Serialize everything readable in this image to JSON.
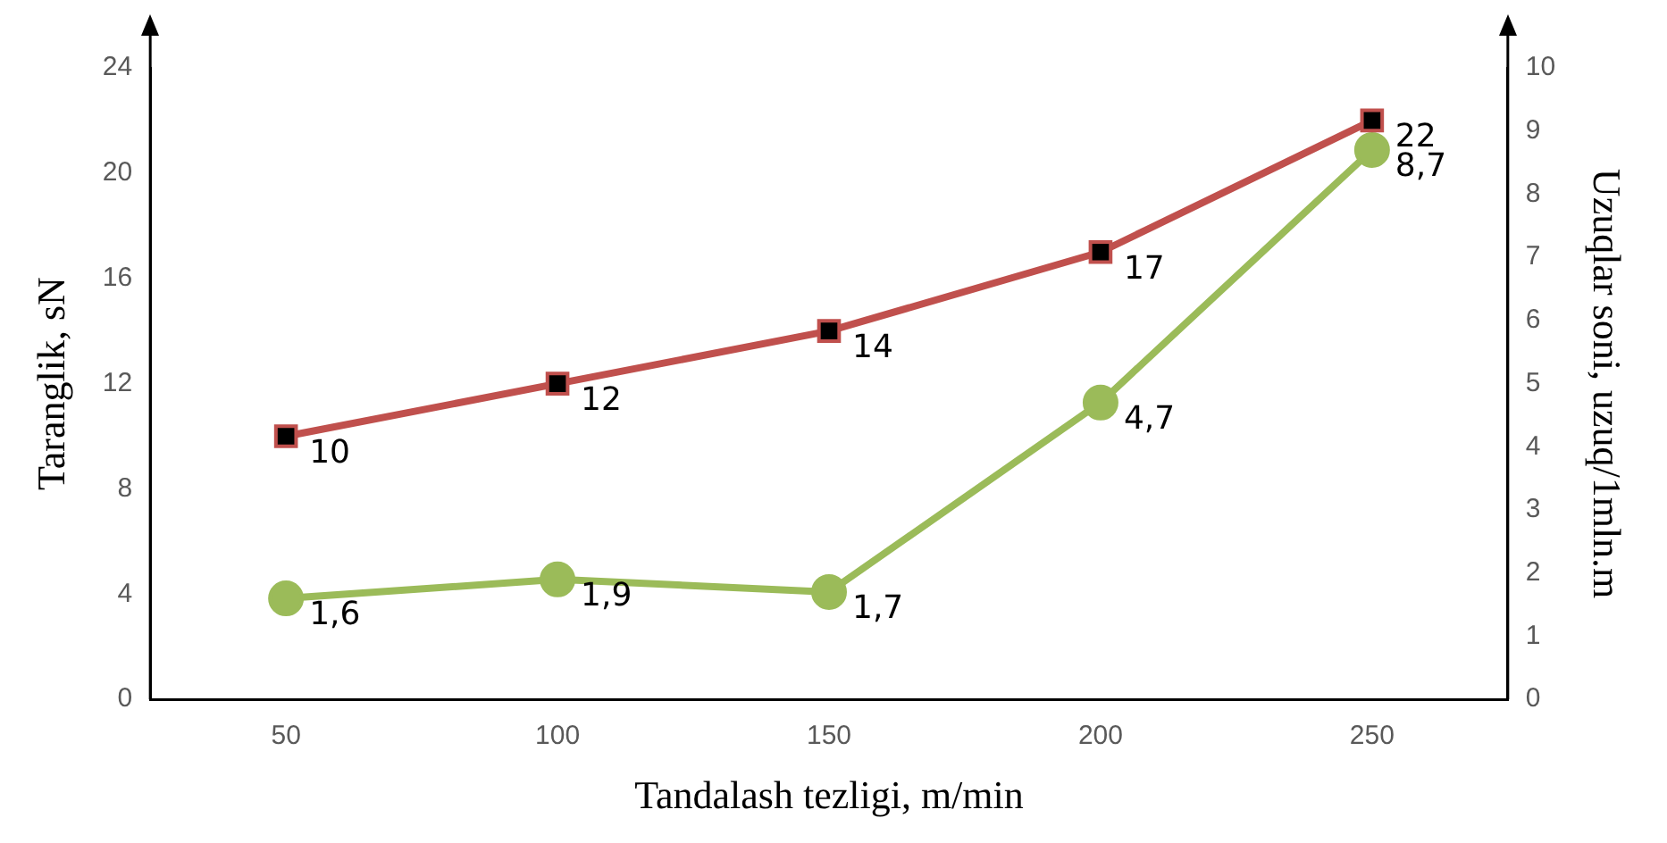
{
  "chart_data": {
    "type": "line",
    "xlabel": "Tandalash tezligi, m/min",
    "ylabel": "Taranglik, sN",
    "y2label": "Uzuqlar soni, uzuq/1mln.m",
    "categories": [
      "50",
      "100",
      "150",
      "200",
      "250"
    ],
    "series": [
      {
        "color": "#c0504d",
        "marker": "square",
        "values": [
          10,
          12,
          14,
          17,
          22
        ],
        "value_labels": [
          "10",
          "12",
          "14",
          "17",
          "22"
        ]
      },
      {
        "color": "#9bbb59",
        "marker": "circle",
        "axis": "y2",
        "values": [
          1.6,
          1.9,
          1.7,
          4.7,
          8.7
        ],
        "value_labels": [
          "1,6",
          "1,9",
          "1,7",
          "4,7",
          "8,7"
        ]
      }
    ],
    "ylim": [
      0,
      24
    ],
    "yticks": [
      0,
      4,
      8,
      12,
      16,
      20,
      24
    ],
    "y2lim": [
      0,
      10
    ],
    "y2ticks": [
      0,
      1,
      2,
      3,
      4,
      5,
      6,
      7,
      8,
      9,
      10
    ],
    "grid": false,
    "legend": false,
    "line_style": "solid"
  }
}
